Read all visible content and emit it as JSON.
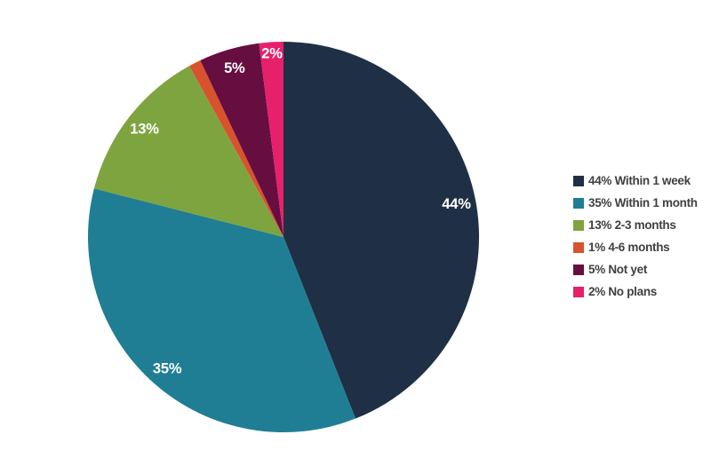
{
  "background_color": "#ffffff",
  "chart_data": {
    "type": "pie",
    "title": "",
    "start_angle_deg": 0,
    "direction": "clockwise",
    "legend_position": "right",
    "slice_label_color": "#ffffff",
    "legend_text_color": "#404040",
    "slices": [
      {
        "value": 44,
        "label": "Within 1 week",
        "pct_label": "44%",
        "legend_text": "44% Within 1 week",
        "color": "#1f3046"
      },
      {
        "value": 35,
        "label": "Within 1 month",
        "pct_label": "35%",
        "legend_text": "35% Within 1 month",
        "color": "#1f7e94"
      },
      {
        "value": 13,
        "label": "2-3 months",
        "pct_label": "13%",
        "legend_text": "13% 2-3 months",
        "color": "#7ea440"
      },
      {
        "value": 1,
        "label": "4-6 months",
        "pct_label": "1%",
        "legend_text": "1% 4-6 months",
        "color": "#d8522e"
      },
      {
        "value": 5,
        "label": "Not yet",
        "pct_label": "5%",
        "legend_text": "5% Not yet",
        "color": "#670e41"
      },
      {
        "value": 2,
        "label": "No plans",
        "pct_label": "2%",
        "legend_text": "2% No plans",
        "color": "#e6206b"
      }
    ]
  }
}
